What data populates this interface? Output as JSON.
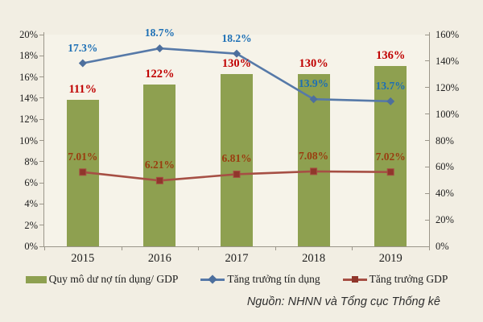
{
  "chart_data": {
    "type": "bar",
    "subtype": "combo-bar-line",
    "categories": [
      "2015",
      "2016",
      "2017",
      "2018",
      "2019"
    ],
    "series": [
      {
        "name": "Quy mô dư nợ tín dụng/ GDP",
        "type": "bar",
        "axis": "right",
        "values": [
          111,
          122,
          130,
          130,
          136
        ],
        "labels": [
          "111%",
          "122%",
          "130%",
          "130%",
          "136%"
        ],
        "color": "#8ea050",
        "label_color": "#c00000"
      },
      {
        "name": "Tăng trưởng tín dụng",
        "type": "line",
        "axis": "left",
        "marker": "diamond",
        "values": [
          17.3,
          18.7,
          18.2,
          13.9,
          13.7
        ],
        "labels": [
          "17.3%",
          "18.7%",
          "18.2%",
          "13.9%",
          "13.7%"
        ],
        "color": "#5679a8",
        "marker_color": "#4d6f9d",
        "label_color": "#1c6fb5"
      },
      {
        "name": "Tăng trưởng GDP",
        "type": "line",
        "axis": "left",
        "marker": "square",
        "values": [
          7.01,
          6.21,
          6.81,
          7.08,
          7.02
        ],
        "labels": [
          "7.01%",
          "6.21%",
          "6.81%",
          "7.08%",
          "7.02%"
        ],
        "color": "#a64f44",
        "marker_color": "#90362b",
        "label_color": "#9a3d10"
      }
    ],
    "left_axis": {
      "min": 0,
      "max": 20,
      "step": 2,
      "tick_labels": [
        "0%",
        "2%",
        "4%",
        "6%",
        "8%",
        "10%",
        "12%",
        "14%",
        "16%",
        "18%",
        "20%"
      ]
    },
    "right_axis": {
      "min": 0,
      "max": 160,
      "step": 20,
      "tick_labels": [
        "0%",
        "20%",
        "40%",
        "60%",
        "80%",
        "100%",
        "120%",
        "140%",
        "160%"
      ]
    },
    "grid": false,
    "legend_position": "bottom",
    "source": "Nguồn: NHNN và Tổng cục Thống kê"
  }
}
